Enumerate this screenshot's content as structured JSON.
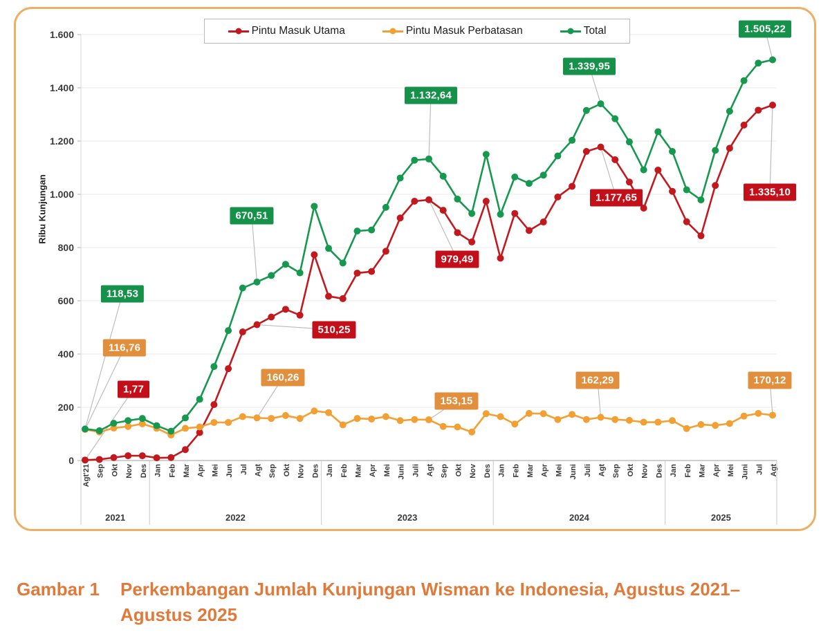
{
  "figure": {
    "y_axis_title": "Ribu Kunjungan",
    "legend": {
      "items": [
        {
          "label": "Pintu Masuk Utama",
          "color": "#c2191f"
        },
        {
          "label": "Pintu Masuk Perbatasan",
          "color": "#f2a033"
        },
        {
          "label": "Total",
          "color": "#17984f"
        }
      ]
    }
  },
  "caption": {
    "label": "Gambar 1",
    "line1": "Perkembangan Jumlah Kunjungan Wisman ke Indonesia, Agustus 2021–",
    "line2": "Agustus 2025"
  },
  "colors": {
    "red_line": "#c2191f",
    "red_box": "#c30f1a",
    "orange_line": "#f2a033",
    "orange_box": "#e28f3d",
    "green_line": "#17984f",
    "green_box": "#15914a",
    "border": "#ecaf63",
    "caption": "#e07a3a",
    "gridline": "#e8e8e8",
    "axis": "#b0b0b0",
    "leader": "#bdbdbd"
  },
  "chart_data": {
    "type": "line",
    "title": "",
    "xlabel": "",
    "ylabel": "Ribu Kunjungan",
    "ylim": [
      0,
      1600
    ],
    "grid": "horizontal",
    "legend_position": "top",
    "y_ticks": [
      "0",
      "200",
      "400",
      "600",
      "800",
      "1.000",
      "1.200",
      "1.400",
      "1.600"
    ],
    "categories": [
      "Agt'21",
      "Sep",
      "Okt",
      "Nov",
      "Des",
      "Jan",
      "Feb",
      "Mar",
      "Apr",
      "Mei",
      "Jun",
      "Jul",
      "Agt",
      "Sep",
      "Okt",
      "Nov",
      "Des",
      "Jan",
      "Feb",
      "Mar",
      "Apr",
      "Mei",
      "Juni",
      "Juli",
      "Agt",
      "Sep",
      "Okt",
      "Nov",
      "Des",
      "Jan",
      "Feb",
      "Mar",
      "Apr",
      "Mei",
      "Juni",
      "Juli",
      "Agt",
      "Sep",
      "Okt",
      "Nov",
      "Des",
      "Jan",
      "Feb",
      "Mar",
      "Apr",
      "Mei",
      "Juni",
      "Jul",
      "Agt"
    ],
    "year_groups": [
      {
        "label": "2021",
        "span": 5
      },
      {
        "label": "2022",
        "span": 12
      },
      {
        "label": "2023",
        "span": 12
      },
      {
        "label": "2024",
        "span": 12
      },
      {
        "label": "2025",
        "span": 8
      }
    ],
    "series": [
      {
        "name": "Pintu Masuk Utama",
        "color": "#c2191f",
        "values": [
          1.77,
          4,
          11,
          18,
          18,
          10,
          11,
          41,
          105,
          210,
          345,
          483,
          510.25,
          539,
          568,
          546,
          773,
          617,
          608,
          704,
          710,
          786,
          911,
          974,
          979.49,
          940,
          856,
          821,
          974,
          760,
          928,
          864,
          896,
          990,
          1030,
          1161,
          1177.65,
          1130,
          1046,
          948,
          1091,
          1011,
          897,
          844,
          1033,
          1173,
          1260,
          1316,
          1335.1
        ]
      },
      {
        "name": "Pintu Masuk Perbatasan",
        "color": "#f2a033",
        "values": [
          116.76,
          107,
          122,
          128,
          138,
          121,
          96,
          121,
          126,
          143,
          143,
          165,
          160.26,
          158,
          169,
          158,
          186,
          180,
          134,
          158,
          156,
          165,
          150,
          154,
          153.15,
          128,
          126,
          107,
          176,
          165,
          137,
          177,
          176,
          154,
          173,
          154,
          162.29,
          154,
          151,
          144,
          144,
          150,
          120,
          135,
          132,
          139,
          167,
          177,
          170.12
        ]
      },
      {
        "name": "Total",
        "color": "#17984f",
        "values": [
          118.53,
          112,
          140,
          150,
          158,
          131,
          110,
          160,
          230,
          353,
          488,
          648,
          670.51,
          695,
          737,
          705,
          955,
          797,
          742,
          862,
          866,
          951,
          1061,
          1128,
          1132.64,
          1068,
          982,
          928,
          1150,
          925,
          1065,
          1041,
          1072,
          1144,
          1203,
          1315,
          1339.95,
          1284,
          1197,
          1092,
          1235,
          1161,
          1017,
          979,
          1165,
          1312,
          1427,
          1493,
          1505.22
        ]
      }
    ],
    "data_labels": [
      {
        "label": "118,53",
        "series_index": 2,
        "month_index": 0
      },
      {
        "label": "116,76",
        "series_index": 1,
        "month_index": 0
      },
      {
        "label": "1,77",
        "series_index": 0,
        "month_index": 0
      },
      {
        "label": "670,51",
        "series_index": 2,
        "month_index": 12
      },
      {
        "label": "510,25",
        "series_index": 0,
        "month_index": 12
      },
      {
        "label": "160,26",
        "series_index": 1,
        "month_index": 12
      },
      {
        "label": "1.132,64",
        "series_index": 2,
        "month_index": 24
      },
      {
        "label": "979,49",
        "series_index": 0,
        "month_index": 24
      },
      {
        "label": "153,15",
        "series_index": 1,
        "month_index": 24
      },
      {
        "label": "1.339,95",
        "series_index": 2,
        "month_index": 36
      },
      {
        "label": "1.177,65",
        "series_index": 0,
        "month_index": 36
      },
      {
        "label": "162,29",
        "series_index": 1,
        "month_index": 36
      },
      {
        "label": "1.505,22",
        "series_index": 2,
        "month_index": 48
      },
      {
        "label": "1.335,10",
        "series_index": 0,
        "month_index": 48
      },
      {
        "label": "170,12",
        "series_index": 1,
        "month_index": 48
      }
    ]
  }
}
